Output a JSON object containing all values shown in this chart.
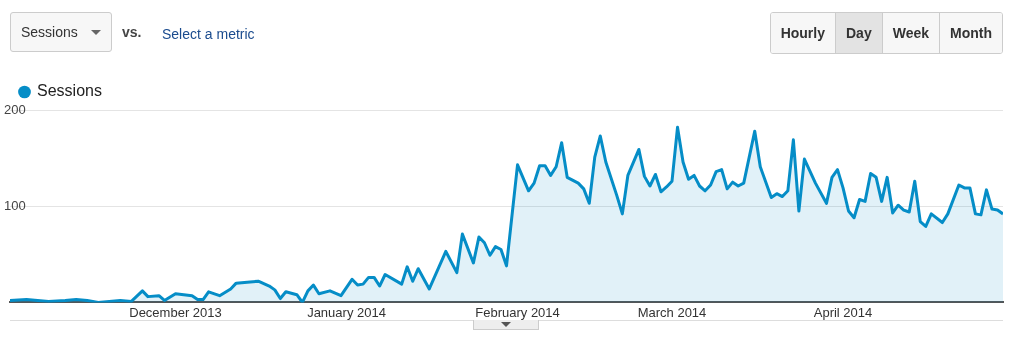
{
  "chart_data": {
    "type": "area",
    "legend": "top left",
    "grid": "y",
    "marker": "none",
    "line_style": "solid",
    "annotations": [
      "Sessions",
      "vs.",
      "Select a metric",
      "Hourly",
      "Day",
      "Week",
      "Month"
    ],
    "xlim": [
      "2013-11-01",
      "2014-04-30"
    ],
    "xticks": [
      {
        "value": "2013-12-01",
        "label": "December 2013"
      },
      {
        "value": "2014-01-01",
        "label": "January 2014"
      },
      {
        "value": "2014-02-01",
        "label": "February 2014"
      },
      {
        "value": "2014-03-01",
        "label": "March 2014"
      },
      {
        "value": "2014-04-01",
        "label": "April 2014"
      }
    ],
    "ylim": [
      0,
      200
    ],
    "yticks": [
      100,
      200
    ],
    "series": [
      {
        "name": "Sessions",
        "color": "#058dc7",
        "x": [
          "2013-11-01",
          "2013-11-04",
          "2013-11-08",
          "2013-11-11",
          "2013-11-13",
          "2013-11-15",
          "2013-11-17",
          "2013-11-21",
          "2013-11-23",
          "2013-11-25",
          "2013-11-26",
          "2013-11-28",
          "2013-11-29",
          "2013-12-01",
          "2013-12-04",
          "2013-12-05",
          "2013-12-06",
          "2013-12-07",
          "2013-12-09",
          "2013-12-11",
          "2013-12-12",
          "2013-12-14",
          "2013-12-16",
          "2013-12-18",
          "2013-12-19",
          "2013-12-20",
          "2013-12-21",
          "2013-12-23",
          "2013-12-24",
          "2013-12-25",
          "2013-12-26",
          "2013-12-27",
          "2013-12-29",
          "2013-12-31",
          "2014-01-02",
          "2014-01-03",
          "2014-01-04",
          "2014-01-05",
          "2014-01-06",
          "2014-01-07",
          "2014-01-08",
          "2014-01-11",
          "2014-01-12",
          "2014-01-13",
          "2014-01-14",
          "2014-01-16",
          "2014-01-19",
          "2014-01-21",
          "2014-01-22",
          "2014-01-24",
          "2014-01-25",
          "2014-01-26",
          "2014-01-27",
          "2014-01-28",
          "2014-01-29",
          "2014-01-30",
          "2014-02-01",
          "2014-02-03",
          "2014-02-04",
          "2014-02-05",
          "2014-02-06",
          "2014-02-07",
          "2014-02-08",
          "2014-02-09",
          "2014-02-10",
          "2014-02-12",
          "2014-02-13",
          "2014-02-14",
          "2014-02-15",
          "2014-02-16",
          "2014-02-17",
          "2014-02-19",
          "2014-02-20",
          "2014-02-21",
          "2014-02-23",
          "2014-02-24",
          "2014-02-25",
          "2014-02-26",
          "2014-02-27",
          "2014-02-28",
          "2014-03-01",
          "2014-03-02",
          "2014-03-03",
          "2014-03-04",
          "2014-03-05",
          "2014-03-06",
          "2014-03-07",
          "2014-03-08",
          "2014-03-09",
          "2014-03-10",
          "2014-03-11",
          "2014-03-12",
          "2014-03-13",
          "2014-03-14",
          "2014-03-16",
          "2014-03-17",
          "2014-03-19",
          "2014-03-20",
          "2014-03-21",
          "2014-03-22",
          "2014-03-23",
          "2014-03-24",
          "2014-03-25",
          "2014-03-27",
          "2014-03-29",
          "2014-03-30",
          "2014-03-31",
          "2014-04-01",
          "2014-04-02",
          "2014-04-03",
          "2014-04-04",
          "2014-04-05",
          "2014-04-06",
          "2014-04-07",
          "2014-04-08",
          "2014-04-09",
          "2014-04-10",
          "2014-04-11",
          "2014-04-12",
          "2014-04-13",
          "2014-04-14",
          "2014-04-15",
          "2014-04-16",
          "2014-04-17",
          "2014-04-19",
          "2014-04-20",
          "2014-04-22",
          "2014-04-23",
          "2014-04-24",
          "2014-04-25",
          "2014-04-26",
          "2014-04-27",
          "2014-04-28",
          "2014-04-29",
          "2014-04-30"
        ],
        "values": [
          2,
          3,
          1,
          2,
          3,
          2,
          0,
          2,
          1,
          12,
          6,
          7,
          2,
          9,
          7,
          3,
          3,
          11,
          7,
          14,
          20,
          21,
          22,
          17,
          13,
          4,
          11,
          8,
          0,
          12,
          18,
          9,
          12,
          7,
          24,
          18,
          19,
          26,
          26,
          17,
          29,
          19,
          37,
          22,
          35,
          14,
          53,
          31,
          71,
          41,
          68,
          62,
          49,
          58,
          55,
          38,
          143,
          116,
          124,
          142,
          142,
          132,
          141,
          166,
          130,
          124,
          118,
          103,
          151,
          173,
          146,
          111,
          92,
          132,
          159,
          131,
          121,
          133,
          115,
          120,
          126,
          182,
          146,
          128,
          132,
          121,
          116,
          122,
          136,
          138,
          118,
          125,
          121,
          124,
          178,
          141,
          109,
          113,
          110,
          116,
          169,
          95,
          149,
          124,
          103,
          130,
          138,
          119,
          95,
          88,
          107,
          105,
          134,
          130,
          105,
          130,
          93,
          101,
          96,
          94,
          126,
          84,
          79,
          92,
          83,
          92,
          122,
          119,
          119,
          92,
          91,
          117,
          97,
          96,
          92
        ]
      }
    ]
  }
}
